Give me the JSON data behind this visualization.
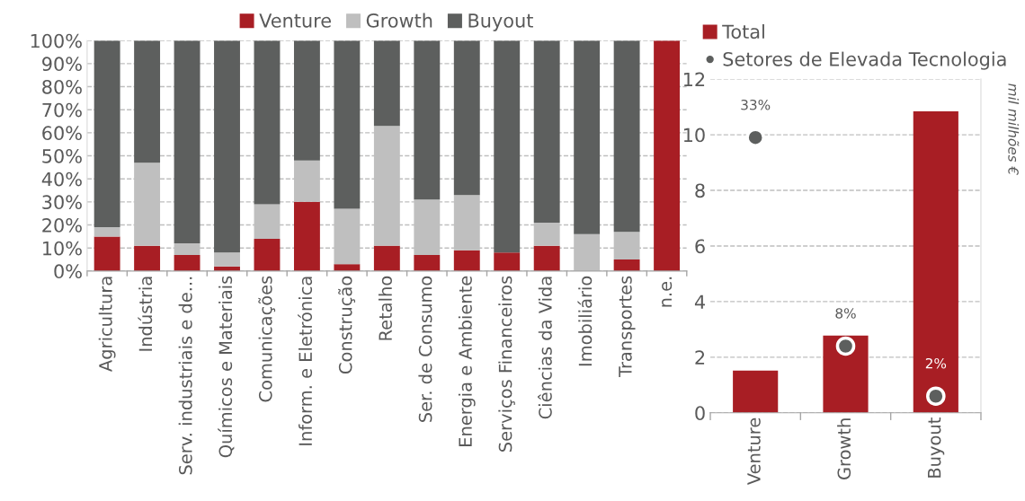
{
  "chart_data": [
    {
      "type": "bar",
      "stacked": true,
      "legend": "top",
      "grid": "y",
      "categories": [
        "Agricultura",
        "Indústria",
        "Serv. industriais e de...",
        "Químicos e Materiais",
        "Comunicações",
        "Inform. e Eletrónica",
        "Construção",
        "Retalho",
        "Ser. de Consumo",
        "Energia e Ambiente",
        "Serviços Financeiros",
        "Ciências da Vida",
        "Imobiliário",
        "Transportes",
        "n.e."
      ],
      "series": [
        {
          "name": "Venture",
          "color": "#a81e24",
          "values": [
            15,
            11,
            7,
            2,
            14,
            30,
            3,
            11,
            7,
            9,
            8,
            11,
            null,
            5,
            100
          ]
        },
        {
          "name": "Growth",
          "color": "#bfbfbf",
          "values": [
            4,
            36,
            5,
            6,
            15,
            18,
            24,
            52,
            24,
            24,
            0,
            10,
            16,
            12,
            0
          ]
        },
        {
          "name": "Buyout",
          "color": "#5d5f5e",
          "values": [
            81,
            53,
            88,
            92,
            71,
            52,
            73,
            37,
            69,
            67,
            92,
            79,
            84,
            83,
            0
          ]
        }
      ],
      "ylim": [
        0,
        100
      ],
      "yticks": [
        {
          "value": 0,
          "label": "0%"
        },
        {
          "value": 10,
          "label": "10%"
        },
        {
          "value": 20,
          "label": "20%"
        },
        {
          "value": 30,
          "label": "30%"
        },
        {
          "value": 40,
          "label": "40%"
        },
        {
          "value": 50,
          "label": "50%"
        },
        {
          "value": 60,
          "label": "60%"
        },
        {
          "value": 70,
          "label": "70%"
        },
        {
          "value": 80,
          "label": "80%"
        },
        {
          "value": 90,
          "label": "90%"
        },
        {
          "value": 100,
          "label": "100%"
        }
      ]
    },
    {
      "type": "bar",
      "legend": "top left",
      "grid": "y",
      "ylabel": "mil milhões €",
      "categories": [
        "Venture",
        "Growth",
        "Buyout"
      ],
      "series": [
        {
          "name": "Total",
          "color": "#a81e24",
          "values": [
            1.52,
            2.78,
            10.84
          ]
        },
        {
          "name": "Setores de Elevada Tecnologia",
          "type": "scatter",
          "marker": "circle",
          "axis": "y2",
          "color": "#5d5f5e",
          "values": [
            33,
            8,
            2
          ],
          "value_labels": [
            "33%",
            "8%",
            "2%"
          ]
        }
      ],
      "ylim": [
        0,
        12
      ],
      "yticks": [
        0,
        2,
        4,
        6,
        8,
        10,
        12
      ],
      "y2lim": [
        0,
        40
      ],
      "tick_labels": "xy"
    }
  ]
}
